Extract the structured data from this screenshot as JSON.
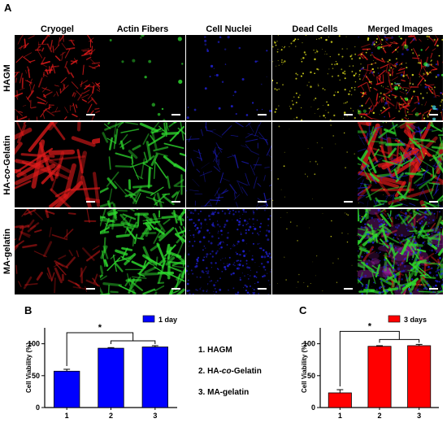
{
  "panels": {
    "a": "A",
    "b": "B",
    "c": "C"
  },
  "columns": [
    "Cryogel",
    "Actin Fibers",
    "Cell Nuclei",
    "Dead Cells",
    "Merged Images"
  ],
  "rows": [
    {
      "label": "HAGM"
    },
    {
      "label_pre": "HA-",
      "label_em": "co",
      "label_post": "-Gelatin"
    },
    {
      "label": "MA-gelatin"
    }
  ],
  "legend_items": [
    {
      "num": "1.",
      "pre": "HAGM",
      "em": "",
      "post": ""
    },
    {
      "num": "2.",
      "pre": "HA-",
      "em": "co",
      "post": "-Gelatin"
    },
    {
      "num": "3.",
      "pre": "MA-gelatin",
      "em": "",
      "post": ""
    }
  ],
  "colors": {
    "red": "#e01b1b",
    "green": "#2ed82e",
    "blue": "#2323e6",
    "yellow": "#e6e61e",
    "bar_b": "#0000ff",
    "bar_c": "#ff0000"
  },
  "chart_data": [
    {
      "type": "bar",
      "categories": [
        "1",
        "2",
        "3"
      ],
      "values": [
        57,
        93,
        95
      ],
      "errors": [
        3,
        1,
        2
      ],
      "ylabel": "Cell Viability (%)",
      "yticks": [
        0,
        50,
        100
      ],
      "ylim": [
        0,
        125
      ],
      "series_name": "1 day",
      "significance": "*",
      "legend": "top-right"
    },
    {
      "type": "bar",
      "categories": [
        "1",
        "2",
        "3"
      ],
      "values": [
        23,
        96,
        97
      ],
      "errors": [
        5,
        1,
        2
      ],
      "ylabel": "Cell Viability (%)",
      "yticks": [
        0,
        50,
        100
      ],
      "ylim": [
        0,
        125
      ],
      "series_name": "3 days",
      "significance": "*",
      "legend": "top-right"
    }
  ]
}
